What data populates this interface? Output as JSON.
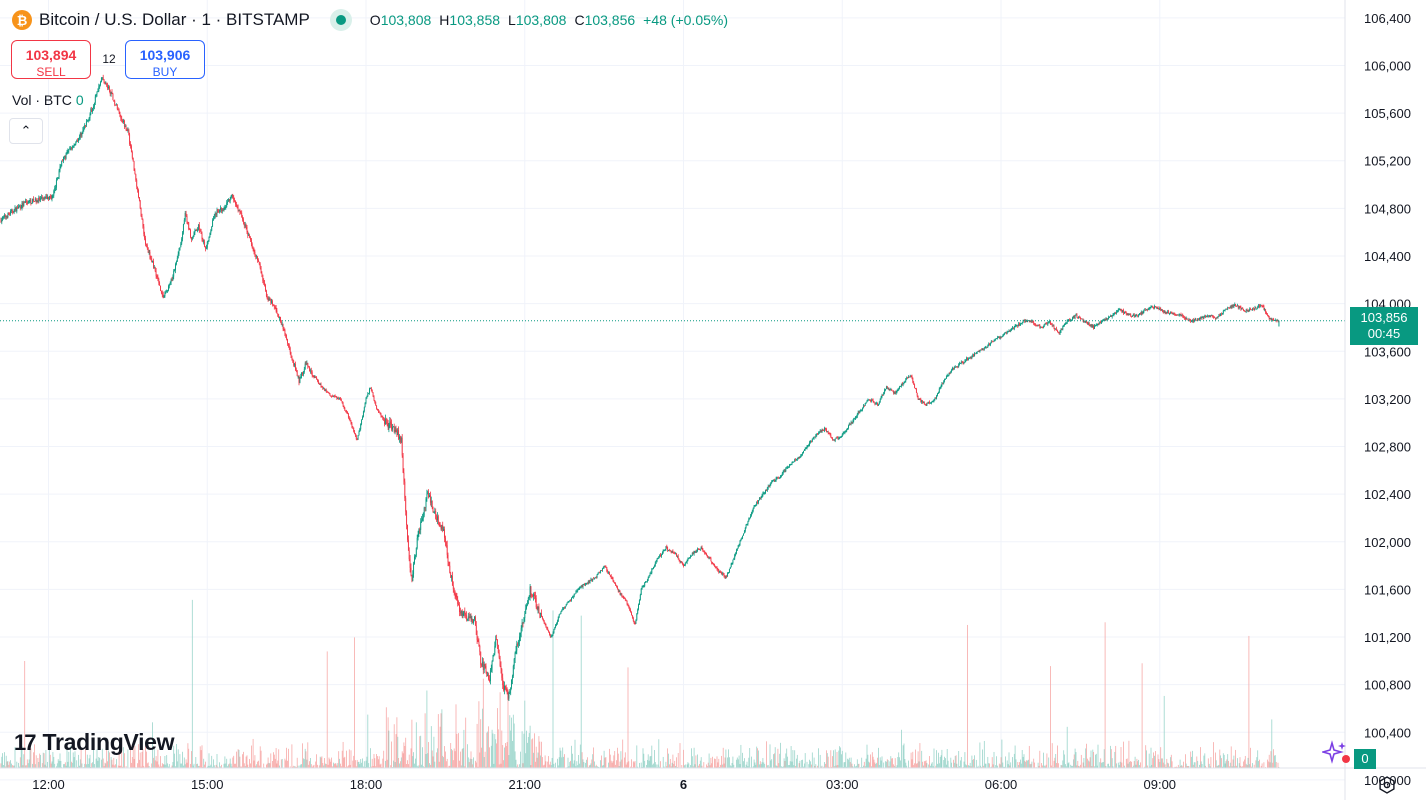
{
  "legend": {
    "coin_glyph": "₿",
    "title": "Bitcoin / U.S. Dollar · 1 · BITSTAMP",
    "o_label": "O",
    "o_value": "103,808",
    "h_label": "H",
    "h_value": "103,858",
    "l_label": "L",
    "l_value": "103,808",
    "c_label": "C",
    "c_value": "103,856",
    "change": "+48 (+0.05%)"
  },
  "trade": {
    "sell_price": "103,894",
    "sell_label": "SELL",
    "spread": "12",
    "buy_price": "103,906",
    "buy_label": "BUY"
  },
  "volume_indicator": {
    "label": "Vol · BTC",
    "value": "0"
  },
  "collapse_glyph": "⌃",
  "price_tag": {
    "price": "103,856",
    "countdown": "00:45"
  },
  "logo": {
    "text": "TradingView"
  },
  "volume_tag": "0",
  "colors": {
    "up": "#089981",
    "down": "#f23645",
    "vol_up": "#9ad4ca",
    "vol_down": "#f7a9a7",
    "grid": "#f0f3fa"
  },
  "chart_data": {
    "type": "candlestick",
    "timeframe": "1 minute",
    "y_axis": {
      "position": "right",
      "range": [
        100100,
        106550
      ],
      "ticks": [
        100000,
        100400,
        100800,
        101200,
        101600,
        102000,
        102400,
        102800,
        103200,
        103600,
        104000,
        104400,
        104800,
        105200,
        105600,
        106000,
        106400
      ],
      "tick_labels": [
        "100,000",
        "100,400",
        "100,800",
        "101,200",
        "101,600",
        "102,000",
        "102,400",
        "102,800",
        "103,200",
        "103,600",
        "104,000",
        "104,400",
        "104,800",
        "105,200",
        "105,600",
        "106,000",
        "106,400"
      ]
    },
    "x_axis": {
      "ticks": [
        {
          "label": "12:00",
          "minute": 0
        },
        {
          "label": "15:00",
          "minute": 180
        },
        {
          "label": "18:00",
          "minute": 360
        },
        {
          "label": "21:00",
          "minute": 540
        },
        {
          "label": "6",
          "minute": 720,
          "bold": true
        },
        {
          "label": "03:00",
          "minute": 900
        },
        {
          "label": "06:00",
          "minute": 1080
        },
        {
          "label": "09:00",
          "minute": 1260
        }
      ],
      "start_minute": -55,
      "end_minute": 1470,
      "last_minute": 1395
    },
    "price_path": [
      [
        -55,
        104700
      ],
      [
        -40,
        104780
      ],
      [
        -25,
        104850
      ],
      [
        -5,
        104880
      ],
      [
        5,
        104900
      ],
      [
        15,
        105200
      ],
      [
        25,
        105300
      ],
      [
        35,
        105400
      ],
      [
        42,
        105500
      ],
      [
        50,
        105650
      ],
      [
        60,
        105900
      ],
      [
        70,
        105780
      ],
      [
        80,
        105600
      ],
      [
        90,
        105450
      ],
      [
        100,
        105000
      ],
      [
        110,
        104500
      ],
      [
        120,
        104300
      ],
      [
        130,
        104050
      ],
      [
        140,
        104200
      ],
      [
        150,
        104500
      ],
      [
        155,
        104750
      ],
      [
        162,
        104550
      ],
      [
        170,
        104650
      ],
      [
        178,
        104450
      ],
      [
        188,
        104750
      ],
      [
        198,
        104800
      ],
      [
        208,
        104900
      ],
      [
        218,
        104750
      ],
      [
        228,
        104550
      ],
      [
        238,
        104350
      ],
      [
        248,
        104050
      ],
      [
        258,
        103950
      ],
      [
        268,
        103750
      ],
      [
        276,
        103550
      ],
      [
        284,
        103350
      ],
      [
        292,
        103500
      ],
      [
        300,
        103400
      ],
      [
        310,
        103300
      ],
      [
        320,
        103230
      ],
      [
        330,
        103200
      ],
      [
        340,
        103050
      ],
      [
        350,
        102850
      ],
      [
        360,
        103200
      ],
      [
        365,
        103300
      ],
      [
        373,
        103100
      ],
      [
        383,
        103000
      ],
      [
        393,
        102950
      ],
      [
        400,
        102850
      ],
      [
        408,
        101900
      ],
      [
        412,
        101700
      ],
      [
        420,
        102100
      ],
      [
        430,
        102400
      ],
      [
        440,
        102200
      ],
      [
        448,
        102100
      ],
      [
        455,
        101750
      ],
      [
        465,
        101450
      ],
      [
        475,
        101350
      ],
      [
        483,
        101350
      ],
      [
        490,
        101000
      ],
      [
        500,
        100850
      ],
      [
        508,
        101200
      ],
      [
        515,
        100800
      ],
      [
        522,
        100700
      ],
      [
        530,
        101100
      ],
      [
        540,
        101400
      ],
      [
        546,
        101600
      ],
      [
        552,
        101500
      ],
      [
        560,
        101350
      ],
      [
        570,
        101200
      ],
      [
        580,
        101400
      ],
      [
        590,
        101500
      ],
      [
        600,
        101600
      ],
      [
        610,
        101650
      ],
      [
        620,
        101700
      ],
      [
        630,
        101800
      ],
      [
        638,
        101700
      ],
      [
        645,
        101600
      ],
      [
        655,
        101500
      ],
      [
        665,
        101300
      ],
      [
        672,
        101600
      ],
      [
        680,
        101700
      ],
      [
        690,
        101850
      ],
      [
        700,
        101950
      ],
      [
        710,
        101900
      ],
      [
        720,
        101800
      ],
      [
        730,
        101900
      ],
      [
        740,
        101950
      ],
      [
        750,
        101850
      ],
      [
        760,
        101750
      ],
      [
        768,
        101700
      ],
      [
        776,
        101850
      ],
      [
        784,
        102000
      ],
      [
        792,
        102150
      ],
      [
        800,
        102300
      ],
      [
        810,
        102400
      ],
      [
        820,
        102500
      ],
      [
        830,
        102550
      ],
      [
        840,
        102650
      ],
      [
        850,
        102700
      ],
      [
        860,
        102800
      ],
      [
        870,
        102900
      ],
      [
        880,
        102950
      ],
      [
        890,
        102850
      ],
      [
        900,
        102900
      ],
      [
        910,
        103000
      ],
      [
        920,
        103100
      ],
      [
        930,
        103200
      ],
      [
        940,
        103150
      ],
      [
        950,
        103300
      ],
      [
        960,
        103250
      ],
      [
        970,
        103350
      ],
      [
        978,
        103400
      ],
      [
        986,
        103200
      ],
      [
        995,
        103150
      ],
      [
        1005,
        103200
      ],
      [
        1015,
        103350
      ],
      [
        1025,
        103450
      ],
      [
        1035,
        103500
      ],
      [
        1045,
        103550
      ],
      [
        1055,
        103600
      ],
      [
        1065,
        103650
      ],
      [
        1075,
        103700
      ],
      [
        1085,
        103750
      ],
      [
        1095,
        103800
      ],
      [
        1105,
        103850
      ],
      [
        1115,
        103850
      ],
      [
        1125,
        103800
      ],
      [
        1135,
        103850
      ],
      [
        1145,
        103750
      ],
      [
        1155,
        103850
      ],
      [
        1165,
        103900
      ],
      [
        1175,
        103850
      ],
      [
        1185,
        103800
      ],
      [
        1195,
        103850
      ],
      [
        1205,
        103900
      ],
      [
        1215,
        103950
      ],
      [
        1225,
        103900
      ],
      [
        1235,
        103900
      ],
      [
        1245,
        103950
      ],
      [
        1255,
        103980
      ],
      [
        1265,
        103930
      ],
      [
        1275,
        103920
      ],
      [
        1285,
        103900
      ],
      [
        1295,
        103850
      ],
      [
        1305,
        103870
      ],
      [
        1315,
        103900
      ],
      [
        1325,
        103880
      ],
      [
        1335,
        103950
      ],
      [
        1345,
        103990
      ],
      [
        1355,
        103940
      ],
      [
        1365,
        103950
      ],
      [
        1375,
        103990
      ],
      [
        1385,
        103870
      ],
      [
        1395,
        103856
      ]
    ],
    "last": {
      "open": 103808,
      "high": 103858,
      "low": 103808,
      "close": 103856,
      "change": 48,
      "change_pct": 0.05
    },
    "last_price_line": 103856,
    "volume": {
      "unit": "BTC",
      "current": 0
    }
  }
}
